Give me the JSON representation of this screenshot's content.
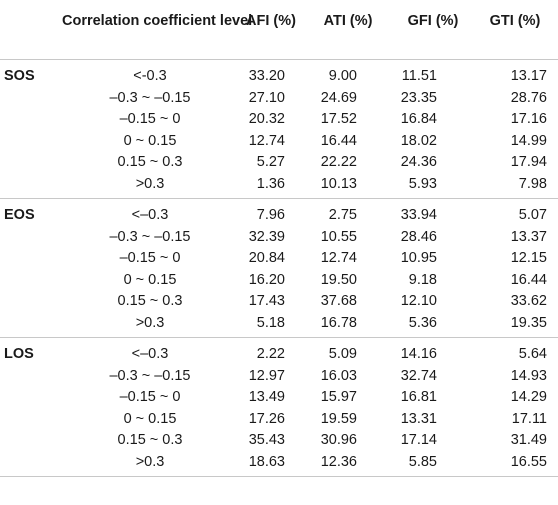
{
  "header": {
    "level": "Correlation coefficient level",
    "columns": [
      "AFI (%)",
      "ATI (%)",
      "GFI (%)",
      "GTI (%)"
    ]
  },
  "groups": [
    {
      "label": "SOS",
      "rows": [
        {
          "level": "<-0.3",
          "values": [
            "33.20",
            "9.00",
            "11.51",
            "13.17"
          ]
        },
        {
          "level": "–0.3 ~ –0.15",
          "values": [
            "27.10",
            "24.69",
            "23.35",
            "28.76"
          ]
        },
        {
          "level": "–0.15 ~ 0",
          "values": [
            "20.32",
            "17.52",
            "16.84",
            "17.16"
          ]
        },
        {
          "level": "0 ~ 0.15",
          "values": [
            "12.74",
            "16.44",
            "18.02",
            "14.99"
          ]
        },
        {
          "level": "0.15 ~ 0.3",
          "values": [
            "5.27",
            "22.22",
            "24.36",
            "17.94"
          ]
        },
        {
          "level": ">0.3",
          "values": [
            "1.36",
            "10.13",
            "5.93",
            "7.98"
          ]
        }
      ]
    },
    {
      "label": "EOS",
      "rows": [
        {
          "level": "<–0.3",
          "values": [
            "7.96",
            "2.75",
            "33.94",
            "5.07"
          ]
        },
        {
          "level": "–0.3 ~ –0.15",
          "values": [
            "32.39",
            "10.55",
            "28.46",
            "13.37"
          ]
        },
        {
          "level": "–0.15 ~ 0",
          "values": [
            "20.84",
            "12.74",
            "10.95",
            "12.15"
          ]
        },
        {
          "level": "0 ~ 0.15",
          "values": [
            "16.20",
            "19.50",
            "9.18",
            "16.44"
          ]
        },
        {
          "level": "0.15 ~ 0.3",
          "values": [
            "17.43",
            "37.68",
            "12.10",
            "33.62"
          ]
        },
        {
          "level": ">0.3",
          "values": [
            "5.18",
            "16.78",
            "5.36",
            "19.35"
          ]
        }
      ]
    },
    {
      "label": "LOS",
      "rows": [
        {
          "level": "<–0.3",
          "values": [
            "2.22",
            "5.09",
            "14.16",
            "5.64"
          ]
        },
        {
          "level": "–0.3 ~ –0.15",
          "values": [
            "12.97",
            "16.03",
            "32.74",
            "14.93"
          ]
        },
        {
          "level": "–0.15 ~ 0",
          "values": [
            "13.49",
            "15.97",
            "16.81",
            "14.29"
          ]
        },
        {
          "level": "0 ~ 0.15",
          "values": [
            "17.26",
            "19.59",
            "13.31",
            "17.11"
          ]
        },
        {
          "level": "0.15 ~ 0.3",
          "values": [
            "35.43",
            "30.96",
            "17.14",
            "31.49"
          ]
        },
        {
          "level": ">0.3",
          "values": [
            "18.63",
            "12.36",
            "5.85",
            "16.55"
          ]
        }
      ]
    }
  ]
}
